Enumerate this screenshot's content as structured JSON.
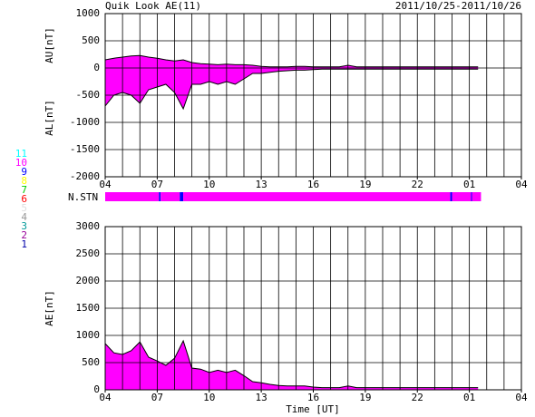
{
  "chart_data": [
    {
      "type": "area",
      "title": "Quik Look AE(11)",
      "subtitle": "2011/10/25-2011/10/26",
      "ylabels": [
        "AU[nT]",
        "AL[nT]"
      ],
      "xlim": [
        4,
        28
      ],
      "xticks": [
        {
          "value": 4,
          "label": "04"
        },
        {
          "value": 7,
          "label": "07"
        },
        10,
        13,
        16,
        19,
        22,
        {
          "value": 25,
          "label": "01"
        },
        {
          "value": 28,
          "label": "04"
        }
      ],
      "ylim": [
        -2000,
        1000
      ],
      "yticks": [
        1000,
        500,
        0,
        -500,
        -1000,
        -1500,
        -2000
      ],
      "grid": true,
      "x": [
        4,
        4.5,
        5,
        5.5,
        6,
        6.5,
        7,
        7.5,
        8,
        8.5,
        9,
        9.5,
        10,
        10.5,
        11,
        11.5,
        12,
        12.5,
        13,
        13.5,
        14,
        14.5,
        15,
        15.5,
        16,
        16.5,
        17,
        17.5,
        18,
        18.5,
        19,
        19.5,
        20,
        20.5,
        21,
        21.5,
        22,
        22.5,
        23,
        23.5,
        24,
        24.5,
        25,
        25.5
      ],
      "series": [
        {
          "color": "#ff00ff",
          "line_color": "#000000",
          "values": [
            150,
            180,
            200,
            220,
            230,
            200,
            180,
            150,
            130,
            150,
            100,
            80,
            70,
            60,
            70,
            60,
            60,
            50,
            30,
            20,
            20,
            20,
            30,
            30,
            20,
            20,
            20,
            20,
            50,
            20,
            20,
            20,
            20,
            20,
            20,
            20,
            20,
            20,
            20,
            20,
            20,
            20,
            20,
            20
          ]
        },
        {
          "color": "#ff00ff",
          "line_color": "#000000",
          "values": [
            -700,
            -500,
            -450,
            -500,
            -650,
            -400,
            -350,
            -300,
            -450,
            -750,
            -300,
            -300,
            -250,
            -300,
            -250,
            -300,
            -200,
            -100,
            -100,
            -80,
            -60,
            -50,
            -40,
            -40,
            -30,
            -20,
            -20,
            -20,
            -20,
            -20,
            -20,
            -20,
            -20,
            -20,
            -20,
            -20,
            -20,
            -20,
            -20,
            -20,
            -20,
            -20,
            -20,
            -20
          ]
        }
      ]
    },
    {
      "type": "strip",
      "label": "N.STN",
      "xlim": [
        4,
        28
      ],
      "segments": [
        {
          "start": 4,
          "end": 7.1,
          "count": 10
        },
        {
          "start": 7.1,
          "end": 7.2,
          "count": 9
        },
        {
          "start": 7.2,
          "end": 8.3,
          "count": 10
        },
        {
          "start": 8.3,
          "end": 8.5,
          "count": 9
        },
        {
          "start": 8.5,
          "end": 23.9,
          "count": 10
        },
        {
          "start": 23.9,
          "end": 24.0,
          "count": 9
        },
        {
          "start": 24.0,
          "end": 25.1,
          "count": 10
        },
        {
          "start": 25.1,
          "end": 25.15,
          "count": 9
        },
        {
          "start": 25.15,
          "end": 25.67,
          "count": 10
        }
      ],
      "levels": [
        {
          "label": "11",
          "color": "#00ffff"
        },
        {
          "label": "10",
          "color": "#ff00ff"
        },
        {
          "label": "9",
          "color": "#0000ff"
        },
        {
          "label": "8",
          "color": "#ffff00"
        },
        {
          "label": "7",
          "color": "#00cc00"
        },
        {
          "label": "6",
          "color": "#ff0000"
        },
        {
          "label": "5",
          "color": "#dddddd"
        },
        {
          "label": "4",
          "color": "#999999"
        },
        {
          "label": "3",
          "color": "#009999"
        },
        {
          "label": "2",
          "color": "#990099"
        },
        {
          "label": "1",
          "color": "#0000aa"
        }
      ]
    },
    {
      "type": "area",
      "ylabels": [
        "AE[nT]"
      ],
      "xlabel": "Time [UT]",
      "xlim": [
        4,
        28
      ],
      "xticks": [
        {
          "value": 4,
          "label": "04"
        },
        {
          "value": 7,
          "label": "07"
        },
        10,
        13,
        16,
        19,
        22,
        {
          "value": 25,
          "label": "01"
        },
        {
          "value": 28,
          "label": "04"
        }
      ],
      "ylim": [
        0,
        3000
      ],
      "yticks": [
        3000,
        2500,
        2000,
        1500,
        1000,
        500,
        0
      ],
      "grid": true,
      "x": [
        4,
        4.5,
        5,
        5.5,
        6,
        6.5,
        7,
        7.5,
        8,
        8.5,
        9,
        9.5,
        10,
        10.5,
        11,
        11.5,
        12,
        12.5,
        13,
        13.5,
        14,
        14.5,
        15,
        15.5,
        16,
        16.5,
        17,
        17.5,
        18,
        18.5,
        19,
        19.5,
        20,
        20.5,
        21,
        21.5,
        22,
        22.5,
        23,
        23.5,
        24,
        24.5,
        25,
        25.5
      ],
      "series": [
        {
          "color": "#ff00ff",
          "line_color": "#000000",
          "values": [
            850,
            680,
            650,
            720,
            880,
            600,
            530,
            450,
            580,
            900,
            400,
            380,
            320,
            360,
            320,
            360,
            260,
            150,
            130,
            100,
            80,
            70,
            70,
            70,
            50,
            40,
            40,
            40,
            70,
            40,
            40,
            40,
            40,
            40,
            40,
            40,
            40,
            40,
            40,
            40,
            40,
            40,
            40,
            40
          ]
        }
      ]
    }
  ]
}
